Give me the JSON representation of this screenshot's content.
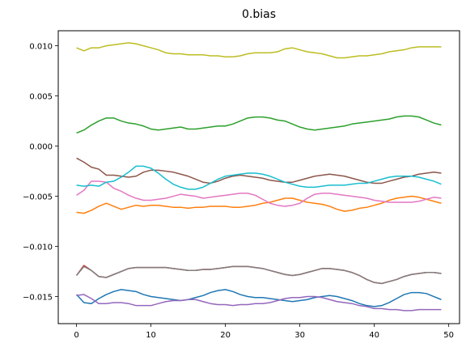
{
  "chart_data": {
    "type": "line",
    "title": "0.bias",
    "xlabel": "",
    "ylabel": "",
    "xlim": [
      -2.45,
      51.45
    ],
    "ylim": [
      -0.0177,
      0.0115
    ],
    "xticks": [
      0,
      10,
      20,
      30,
      40,
      50
    ],
    "xtick_labels": [
      "0",
      "10",
      "20",
      "30",
      "40",
      "50"
    ],
    "yticks": [
      -0.015,
      -0.01,
      -0.005,
      0.0,
      0.005,
      0.01
    ],
    "ytick_labels": [
      "−0.015",
      "−0.010",
      "−0.005",
      "0.000",
      "0.005",
      "0.010"
    ],
    "grid": false,
    "x_start": 0,
    "x_step": 1,
    "series": [
      {
        "color": "#1f77b4",
        "values": [
          -0.0148,
          -0.0156,
          -0.0157,
          -0.0152,
          -0.0148,
          -0.0145,
          -0.0143,
          -0.0144,
          -0.0145,
          -0.0148,
          -0.015,
          -0.0151,
          -0.0152,
          -0.0153,
          -0.0154,
          -0.0153,
          -0.0151,
          -0.0149,
          -0.0146,
          -0.0144,
          -0.0143,
          -0.0145,
          -0.0148,
          -0.015,
          -0.0151,
          -0.0151,
          -0.0152,
          -0.0153,
          -0.0154,
          -0.0155,
          -0.0154,
          -0.0153,
          -0.0151,
          -0.015,
          -0.0149,
          -0.015,
          -0.0152,
          -0.0154,
          -0.0157,
          -0.0159,
          -0.016,
          -0.0159,
          -0.0156,
          -0.0152,
          -0.0148,
          -0.0146,
          -0.0146,
          -0.0147,
          -0.015,
          -0.0153
        ]
      },
      {
        "color": "#ff7f0e",
        "values": [
          -0.0066,
          -0.0067,
          -0.0064,
          -0.006,
          -0.0057,
          -0.006,
          -0.0063,
          -0.0061,
          -0.0059,
          -0.006,
          -0.0059,
          -0.0059,
          -0.006,
          -0.0061,
          -0.0061,
          -0.0062,
          -0.0061,
          -0.0061,
          -0.006,
          -0.006,
          -0.006,
          -0.0061,
          -0.0061,
          -0.006,
          -0.0059,
          -0.0057,
          -0.0056,
          -0.0054,
          -0.0052,
          -0.0052,
          -0.0054,
          -0.0056,
          -0.0057,
          -0.0058,
          -0.006,
          -0.0063,
          -0.0065,
          -0.0064,
          -0.0062,
          -0.0061,
          -0.0059,
          -0.0057,
          -0.0054,
          -0.0052,
          -0.0051,
          -0.005,
          -0.0051,
          -0.0053,
          -0.0055,
          -0.0057
        ]
      },
      {
        "color": "#2ca02c",
        "values": [
          0.0013,
          0.0016,
          0.0021,
          0.0025,
          0.0028,
          0.0028,
          0.0025,
          0.0023,
          0.0022,
          0.002,
          0.0017,
          0.0016,
          0.0017,
          0.0018,
          0.0019,
          0.0017,
          0.0017,
          0.0018,
          0.0019,
          0.002,
          0.002,
          0.0022,
          0.0025,
          0.0028,
          0.0029,
          0.0029,
          0.0028,
          0.0026,
          0.0025,
          0.0022,
          0.0019,
          0.0017,
          0.0016,
          0.0017,
          0.0018,
          0.0019,
          0.002,
          0.0022,
          0.0023,
          0.0024,
          0.0025,
          0.0026,
          0.0027,
          0.0029,
          0.003,
          0.003,
          0.0029,
          0.0026,
          0.0023,
          0.0021
        ]
      },
      {
        "color": "#d62728",
        "values": [
          -0.0129,
          -0.0119,
          -0.0124,
          -0.013,
          -0.0131,
          -0.0128,
          -0.0125,
          -0.0122,
          -0.0121,
          -0.0121,
          -0.0121,
          -0.0121,
          -0.0121,
          -0.0122,
          -0.0123,
          -0.0124,
          -0.0124,
          -0.0123,
          -0.0123,
          -0.0122,
          -0.0121,
          -0.012,
          -0.012,
          -0.012,
          -0.0121,
          -0.0122,
          -0.0124,
          -0.0126,
          -0.0128,
          -0.0129,
          -0.0128,
          -0.0126,
          -0.0124,
          -0.0122,
          -0.0122,
          -0.0123,
          -0.0124,
          -0.0126,
          -0.0129,
          -0.0133,
          -0.0136,
          -0.0137,
          -0.0135,
          -0.0133,
          -0.013,
          -0.0128,
          -0.0127,
          -0.0126,
          -0.0126,
          -0.0127
        ]
      },
      {
        "color": "#9467bd",
        "values": [
          -0.0149,
          -0.0148,
          -0.0152,
          -0.0157,
          -0.0157,
          -0.0156,
          -0.0156,
          -0.0157,
          -0.0159,
          -0.0159,
          -0.0159,
          -0.0157,
          -0.0155,
          -0.0154,
          -0.0154,
          -0.0153,
          -0.0153,
          -0.0155,
          -0.0157,
          -0.0158,
          -0.0158,
          -0.0159,
          -0.0158,
          -0.0158,
          -0.0157,
          -0.0157,
          -0.0156,
          -0.0154,
          -0.0152,
          -0.0151,
          -0.0151,
          -0.015,
          -0.015,
          -0.0151,
          -0.0153,
          -0.0155,
          -0.0156,
          -0.0157,
          -0.0159,
          -0.016,
          -0.0162,
          -0.0162,
          -0.0163,
          -0.0163,
          -0.0164,
          -0.0164,
          -0.0163,
          -0.0163,
          -0.0163,
          -0.0163
        ]
      },
      {
        "color": "#8c564b",
        "values": [
          -0.0012,
          -0.0016,
          -0.0021,
          -0.0023,
          -0.0029,
          -0.0029,
          -0.003,
          -0.0031,
          -0.003,
          -0.0026,
          -0.0024,
          -0.0024,
          -0.0025,
          -0.0026,
          -0.0028,
          -0.003,
          -0.0033,
          -0.0036,
          -0.0037,
          -0.0035,
          -0.0032,
          -0.003,
          -0.0029,
          -0.003,
          -0.0031,
          -0.0032,
          -0.0034,
          -0.0035,
          -0.0036,
          -0.0036,
          -0.0034,
          -0.0032,
          -0.003,
          -0.0029,
          -0.0028,
          -0.0029,
          -0.003,
          -0.0032,
          -0.0034,
          -0.0036,
          -0.0037,
          -0.0037,
          -0.0035,
          -0.0033,
          -0.0031,
          -0.003,
          -0.0028,
          -0.0027,
          -0.0026,
          -0.0027
        ]
      },
      {
        "color": "#e377c2",
        "values": [
          -0.0049,
          -0.0044,
          -0.0035,
          -0.0035,
          -0.0036,
          -0.0042,
          -0.0045,
          -0.0049,
          -0.0052,
          -0.0054,
          -0.0054,
          -0.0053,
          -0.0052,
          -0.005,
          -0.0048,
          -0.0049,
          -0.005,
          -0.0052,
          -0.0051,
          -0.005,
          -0.0049,
          -0.0048,
          -0.0047,
          -0.0047,
          -0.0049,
          -0.0053,
          -0.0057,
          -0.0059,
          -0.006,
          -0.0059,
          -0.0057,
          -0.0052,
          -0.0048,
          -0.0047,
          -0.0047,
          -0.0048,
          -0.0049,
          -0.005,
          -0.0051,
          -0.0052,
          -0.0054,
          -0.0055,
          -0.0056,
          -0.0056,
          -0.0056,
          -0.0056,
          -0.0055,
          -0.0053,
          -0.0051,
          -0.0052
        ]
      },
      {
        "color": "#7f7f7f",
        "values": [
          -0.0129,
          -0.012,
          -0.0124,
          -0.013,
          -0.0131,
          -0.0128,
          -0.0125,
          -0.0122,
          -0.0121,
          -0.0121,
          -0.0121,
          -0.0121,
          -0.0121,
          -0.0122,
          -0.0123,
          -0.0124,
          -0.0124,
          -0.0123,
          -0.0123,
          -0.0122,
          -0.0121,
          -0.012,
          -0.012,
          -0.012,
          -0.0121,
          -0.0122,
          -0.0124,
          -0.0126,
          -0.0128,
          -0.0129,
          -0.0128,
          -0.0126,
          -0.0124,
          -0.0122,
          -0.0122,
          -0.0123,
          -0.0124,
          -0.0126,
          -0.0129,
          -0.0133,
          -0.0136,
          -0.0137,
          -0.0135,
          -0.0133,
          -0.013,
          -0.0128,
          -0.0127,
          -0.0126,
          -0.0126,
          -0.0127
        ]
      },
      {
        "color": "#bcbd22",
        "values": [
          0.0098,
          0.0095,
          0.0098,
          0.0098,
          0.01,
          0.0101,
          0.0102,
          0.0103,
          0.0102,
          0.01,
          0.0098,
          0.0096,
          0.0093,
          0.0092,
          0.0092,
          0.0091,
          0.0091,
          0.0091,
          0.009,
          0.009,
          0.0089,
          0.0089,
          0.009,
          0.0092,
          0.0093,
          0.0093,
          0.0093,
          0.0094,
          0.0097,
          0.0098,
          0.0096,
          0.0094,
          0.0093,
          0.0092,
          0.009,
          0.0088,
          0.0088,
          0.0089,
          0.009,
          0.009,
          0.0091,
          0.0092,
          0.0094,
          0.0095,
          0.0096,
          0.0098,
          0.0099,
          0.0099,
          0.0099,
          0.0099
        ]
      },
      {
        "color": "#17becf",
        "values": [
          -0.0039,
          -0.004,
          -0.0039,
          -0.004,
          -0.0036,
          -0.0035,
          -0.0031,
          -0.0026,
          -0.002,
          -0.002,
          -0.0022,
          -0.0027,
          -0.0033,
          -0.0038,
          -0.0041,
          -0.0043,
          -0.0043,
          -0.0041,
          -0.0037,
          -0.0033,
          -0.003,
          -0.0029,
          -0.0028,
          -0.0027,
          -0.0027,
          -0.0028,
          -0.003,
          -0.0033,
          -0.0036,
          -0.0038,
          -0.004,
          -0.0041,
          -0.0041,
          -0.004,
          -0.0039,
          -0.0039,
          -0.0039,
          -0.0038,
          -0.0037,
          -0.0037,
          -0.0035,
          -0.0033,
          -0.0031,
          -0.003,
          -0.003,
          -0.003,
          -0.0031,
          -0.0033,
          -0.0035,
          -0.0038
        ]
      }
    ]
  }
}
